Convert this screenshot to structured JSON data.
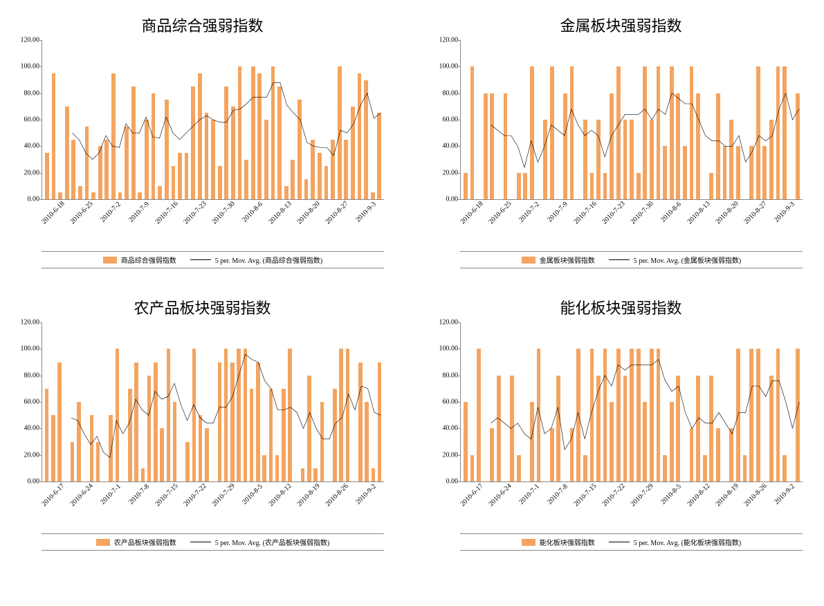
{
  "layout": {
    "cols": 2,
    "rows": 2,
    "gap_x": 60,
    "gap_y": 40
  },
  "global": {
    "bar_color": "#f4a460",
    "line_color": "#000000",
    "axis_color": "#888888",
    "background": "#ffffff",
    "title_fontsize": 22,
    "tick_fontsize": 10,
    "legend_fontsize": 10,
    "font_family": "SimSun"
  },
  "charts": [
    {
      "id": "composite",
      "title": "商品综合强弱指数",
      "type": "bar+line",
      "ylim": [
        0,
        120
      ],
      "ytick_step": 20,
      "yticks": [
        "0.00",
        "20.00",
        "40.00",
        "60.00",
        "80.00",
        "100.00",
        "120.00"
      ],
      "x_major_labels": [
        "2010-6-18",
        "2010-6-25",
        "2010-7-2",
        "2010-7-9",
        "2010-7-16",
        "2010-7-23",
        "2010-7-30",
        "2010-8-6",
        "2010-8-13",
        "2010-8-20",
        "2010-8-27",
        "2010-9-3"
      ],
      "x_label_rotation": -45,
      "values": [
        35,
        95,
        5,
        70,
        45,
        10,
        55,
        5,
        40,
        45,
        95,
        5,
        55,
        85,
        5,
        60,
        80,
        10,
        75,
        25,
        35,
        35,
        85,
        95,
        65,
        60,
        25,
        85,
        70,
        100,
        30,
        100,
        95,
        60,
        100,
        85,
        10,
        30,
        75,
        15,
        45,
        35,
        25,
        45,
        100,
        45,
        70,
        95,
        90,
        5,
        65
      ],
      "moving_avg": [
        null,
        null,
        null,
        null,
        50,
        45,
        35,
        30,
        35,
        48,
        40,
        39,
        57,
        50,
        50,
        62,
        47,
        46,
        62,
        50,
        45,
        50,
        55,
        60,
        63,
        60,
        58,
        58,
        67,
        68,
        72,
        77,
        77,
        77,
        88,
        88,
        71,
        65,
        60,
        43,
        40,
        39,
        39,
        33,
        52,
        50,
        57,
        71,
        80,
        61,
        65
      ],
      "legend_bar": "商品综合强弱指数",
      "legend_line": "5 per. Mov. Avg. (商品综合强弱指数)"
    },
    {
      "id": "metals",
      "title": "金属板块强弱指数",
      "type": "bar+line",
      "ylim": [
        0,
        120
      ],
      "ytick_step": 20,
      "yticks": [
        "0.00",
        "20.00",
        "40.00",
        "60.00",
        "80.00",
        "100.00",
        "120.00"
      ],
      "x_major_labels": [
        "2010-6-18",
        "2010-6-25",
        "2010-7-2",
        "2010-7-9",
        "2010-7-16",
        "2010-7-23",
        "2010-7-30",
        "2010-8-6",
        "2010-8-13",
        "2010-8-20",
        "2010-8-27",
        "2010-9-3"
      ],
      "x_label_rotation": -45,
      "values": [
        20,
        100,
        0,
        80,
        80,
        0,
        80,
        0,
        20,
        20,
        100,
        0,
        60,
        100,
        0,
        80,
        100,
        0,
        60,
        20,
        60,
        20,
        80,
        100,
        60,
        60,
        20,
        100,
        60,
        100,
        40,
        100,
        80,
        40,
        100,
        80,
        0,
        20,
        80,
        40,
        60,
        40,
        0,
        40,
        100,
        40,
        60,
        100,
        100,
        0,
        80
      ],
      "moving_avg": [
        null,
        null,
        null,
        null,
        56,
        52,
        48,
        48,
        40,
        24,
        44,
        28,
        40,
        56,
        52,
        48,
        68,
        56,
        48,
        52,
        48,
        32,
        48,
        56,
        64,
        64,
        64,
        68,
        60,
        68,
        64,
        80,
        76,
        72,
        72,
        60,
        48,
        44,
        44,
        40,
        40,
        48,
        28,
        36,
        48,
        44,
        48,
        68,
        80,
        60,
        68
      ],
      "legend_bar": "金属板块强弱指数",
      "legend_line": "5 per. Mov. Avg. (金属板块强弱指数)"
    },
    {
      "id": "agri",
      "title": "农产品板块强弱指数",
      "type": "bar+line",
      "ylim": [
        0,
        120
      ],
      "ytick_step": 20,
      "yticks": [
        "0.00",
        "20.00",
        "40.00",
        "60.00",
        "80.00",
        "100.00",
        "120.00"
      ],
      "x_major_labels": [
        "2010-6-17",
        "2010-6-24",
        "2010-7-1",
        "2010-7-8",
        "2010-7-15",
        "2010-7-22",
        "2010-7-29",
        "2010-8-5",
        "2010-8-12",
        "2010-8-19",
        "2010-8-26",
        "2010-9-2"
      ],
      "x_label_rotation": -45,
      "values": [
        70,
        50,
        90,
        0,
        30,
        60,
        0,
        50,
        30,
        0,
        50,
        100,
        0,
        70,
        90,
        10,
        80,
        90,
        40,
        100,
        60,
        0,
        30,
        100,
        50,
        40,
        0,
        90,
        100,
        90,
        100,
        100,
        70,
        90,
        20,
        70,
        20,
        70,
        100,
        0,
        10,
        80,
        10,
        60,
        0,
        70,
        100,
        100,
        0,
        90,
        60,
        10,
        90
      ],
      "moving_avg": [
        null,
        null,
        null,
        null,
        48,
        46,
        36,
        28,
        34,
        22,
        18,
        46,
        36,
        44,
        62,
        54,
        50,
        68,
        62,
        64,
        74,
        58,
        46,
        58,
        48,
        44,
        44,
        56,
        56,
        64,
        80,
        96,
        92,
        90,
        76,
        70,
        54,
        54,
        56,
        52,
        40,
        52,
        40,
        32,
        32,
        44,
        48,
        66,
        54,
        72,
        70,
        52,
        50
      ],
      "legend_bar": "农产品板块强弱指数",
      "legend_line": "5 per. Mov. Avg. (农产品板块强弱指数)"
    },
    {
      "id": "energy",
      "title": "能化板块强弱指数",
      "type": "bar+line",
      "ylim": [
        0,
        120
      ],
      "ytick_step": 20,
      "yticks": [
        "0.00",
        "20.00",
        "40.00",
        "60.00",
        "80.00",
        "100.00",
        "120.00"
      ],
      "x_major_labels": [
        "2010-6-17",
        "2010-6-24",
        "2010-7-1",
        "2010-7-8",
        "2010-7-15",
        "2010-7-22",
        "2010-7-29",
        "2010-8-5",
        "2010-8-12",
        "2010-8-19",
        "2010-8-26",
        "2010-9-2"
      ],
      "x_label_rotation": -45,
      "values": [
        60,
        20,
        100,
        0,
        40,
        80,
        0,
        80,
        20,
        0,
        60,
        100,
        0,
        40,
        80,
        0,
        40,
        100,
        20,
        100,
        80,
        100,
        60,
        100,
        80,
        100,
        100,
        60,
        100,
        100,
        20,
        60,
        80,
        0,
        40,
        80,
        20,
        80,
        40,
        0,
        40,
        100,
        20,
        100,
        100,
        0,
        80,
        100,
        20,
        0,
        100
      ],
      "moving_avg": [
        null,
        null,
        null,
        null,
        44,
        48,
        44,
        40,
        44,
        36,
        32,
        56,
        36,
        40,
        56,
        24,
        32,
        52,
        32,
        52,
        68,
        80,
        72,
        88,
        84,
        88,
        88,
        88,
        88,
        92,
        76,
        68,
        72,
        52,
        40,
        48,
        44,
        44,
        52,
        44,
        36,
        52,
        52,
        72,
        72,
        64,
        76,
        76,
        60,
        40,
        60
      ],
      "legend_bar": "能化板块强弱指数",
      "legend_line": "5 per. Mov. Avg. (能化板块强弱指数)"
    }
  ]
}
